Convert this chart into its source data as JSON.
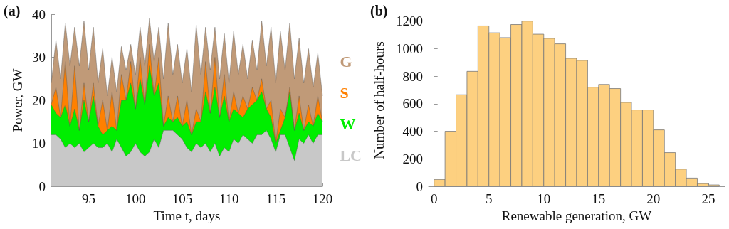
{
  "chart_data": [
    {
      "type": "area",
      "title": "(a)",
      "xlabel": "Time t, days",
      "ylabel": "Power, GW",
      "stacked": true,
      "legend": "right",
      "marker": "none",
      "grid": false,
      "xlim": [
        91,
        120
      ],
      "xticks": [
        95,
        100,
        105,
        110,
        115,
        120
      ],
      "ylim": [
        0,
        40
      ],
      "yticks": [
        0,
        10,
        20,
        30,
        40
      ],
      "x": [
        91,
        91.5,
        92,
        92.5,
        93,
        93.5,
        94,
        94.5,
        95,
        95.5,
        96,
        96.5,
        97,
        97.5,
        98,
        98.5,
        99,
        99.5,
        100,
        100.5,
        101,
        101.5,
        102,
        102.5,
        103,
        103.5,
        104,
        104.5,
        105,
        105.5,
        106,
        106.5,
        107,
        107.5,
        108,
        108.5,
        109,
        109.5,
        110,
        110.5,
        111,
        111.5,
        112,
        112.5,
        113,
        113.5,
        114,
        114.5,
        115,
        115.5,
        116,
        116.5,
        117,
        117.5,
        118,
        118.5,
        119,
        119.5,
        120
      ],
      "series": [
        {
          "name": "LC",
          "color": "#c8c8c8",
          "values": [
            12,
            12,
            11,
            9,
            10,
            9,
            10,
            8,
            9,
            10,
            9,
            9,
            10,
            8,
            11,
            9,
            7,
            8,
            10,
            8,
            7,
            8,
            11,
            9,
            13,
            13,
            13,
            12,
            11,
            9,
            8,
            10,
            9,
            10,
            8,
            10,
            7,
            9,
            8,
            11,
            10,
            12,
            11,
            10,
            12,
            12,
            13,
            11,
            8,
            12,
            12,
            9,
            6,
            11,
            10,
            12,
            10,
            12,
            12
          ]
        },
        {
          "name": "W",
          "color": "#00ee00",
          "values": [
            7,
            5,
            5,
            10,
            4,
            9,
            3,
            12,
            6,
            11,
            5,
            3,
            3,
            6,
            2,
            11,
            13,
            16,
            8,
            17,
            12,
            20,
            10,
            15,
            1,
            3,
            2,
            4,
            3,
            6,
            4,
            5,
            6,
            12,
            9,
            13,
            9,
            12,
            7,
            7,
            7,
            4,
            7,
            9,
            8,
            10,
            5,
            5,
            2,
            1,
            4,
            13,
            7,
            6,
            3,
            3,
            4,
            5,
            3
          ]
        },
        {
          "name": "S",
          "color": "#ff8000",
          "values": [
            0,
            6,
            0,
            10,
            0,
            10,
            0,
            4,
            0,
            3,
            0,
            8,
            0,
            8,
            0,
            6,
            0,
            5,
            0,
            5,
            0,
            5,
            0,
            6,
            0,
            5,
            0,
            5,
            0,
            5,
            0,
            3,
            0,
            7,
            0,
            7,
            0,
            5,
            0,
            4,
            0,
            5,
            0,
            4,
            0,
            3,
            0,
            4,
            0,
            5,
            0,
            1,
            0,
            4,
            0,
            4,
            0,
            4,
            0
          ]
        },
        {
          "name": "G",
          "color": "#c09a78",
          "values": [
            5,
            11,
            9,
            9,
            14,
            9,
            15,
            14.5,
            12,
            13,
            10,
            12,
            8,
            8,
            9,
            6.5,
            7,
            4,
            8,
            7,
            9,
            6,
            8,
            7,
            11,
            17,
            11,
            12,
            10,
            12,
            10,
            19.5,
            11,
            8,
            10,
            7,
            9,
            9.5,
            9,
            14,
            9,
            12,
            7,
            11,
            7,
            13.5,
            10,
            17,
            14,
            18,
            11,
            15,
            12,
            13.5,
            11,
            13,
            9,
            10,
            6
          ]
        }
      ]
    },
    {
      "type": "histogram",
      "title": "(b)",
      "xlabel": "Renewable generation, GW",
      "ylabel": "Number of half-hours",
      "color": "#fdd080",
      "legend": false,
      "grid": false,
      "xlim": [
        -0.5,
        26.5
      ],
      "xticks": [
        0,
        5,
        10,
        15,
        20,
        25
      ],
      "ylim": [
        0,
        1250
      ],
      "yticks": [
        0,
        200,
        400,
        600,
        800,
        1000,
        1200
      ],
      "bins": [
        0,
        1,
        2,
        3,
        4,
        5,
        6,
        7,
        8,
        9,
        10,
        11,
        12,
        13,
        14,
        15,
        16,
        17,
        18,
        19,
        20,
        21,
        22,
        23,
        24,
        25,
        26
      ],
      "values": [
        50,
        400,
        665,
        835,
        1165,
        1115,
        1080,
        1175,
        1200,
        1105,
        1075,
        1035,
        930,
        915,
        720,
        740,
        710,
        610,
        555,
        555,
        410,
        245,
        125,
        60,
        20,
        10
      ]
    }
  ]
}
